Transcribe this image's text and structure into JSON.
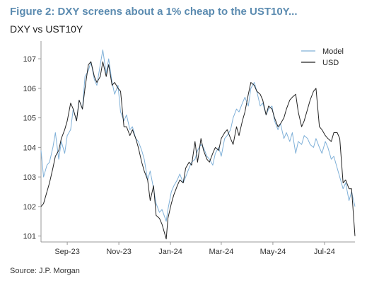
{
  "figure": {
    "title": "Figure 2: DXY screens about a 1% cheap to the UST10Y...",
    "subtitle": "DXY vs UST10Y",
    "source": "Source: J.P. Morgan"
  },
  "chart_data": {
    "type": "line",
    "title": "DXY vs UST10Y",
    "xlabel": "",
    "ylabel": "",
    "x_ticks": [
      "Sep-23",
      "Nov-23",
      "Jan-24",
      "Mar-24",
      "May-24",
      "Jul-24"
    ],
    "y_ticks": [
      101,
      102,
      103,
      104,
      105,
      106,
      107
    ],
    "ylim": [
      100.8,
      107.6
    ],
    "xlim": [
      "2023-08-01",
      "2024-08-06"
    ],
    "grid": false,
    "legend_position": "top-right",
    "colors": {
      "Model": "#7fb0d8",
      "USD": "#222222"
    },
    "x": [
      "2023-08-01",
      "2023-08-04",
      "2023-08-08",
      "2023-08-11",
      "2023-08-15",
      "2023-08-18",
      "2023-08-22",
      "2023-08-25",
      "2023-08-29",
      "2023-09-01",
      "2023-09-05",
      "2023-09-08",
      "2023-09-12",
      "2023-09-15",
      "2023-09-19",
      "2023-09-22",
      "2023-09-26",
      "2023-09-29",
      "2023-10-03",
      "2023-10-06",
      "2023-10-10",
      "2023-10-13",
      "2023-10-17",
      "2023-10-20",
      "2023-10-24",
      "2023-10-27",
      "2023-10-31",
      "2023-11-03",
      "2023-11-07",
      "2023-11-10",
      "2023-11-14",
      "2023-11-17",
      "2023-11-21",
      "2023-11-24",
      "2023-11-28",
      "2023-12-01",
      "2023-12-05",
      "2023-12-08",
      "2023-12-12",
      "2023-12-15",
      "2023-12-19",
      "2023-12-22",
      "2023-12-27",
      "2023-12-29",
      "2024-01-02",
      "2024-01-05",
      "2024-01-09",
      "2024-01-12",
      "2024-01-16",
      "2024-01-19",
      "2024-01-23",
      "2024-01-26",
      "2024-01-30",
      "2024-02-02",
      "2024-02-06",
      "2024-02-09",
      "2024-02-13",
      "2024-02-16",
      "2024-02-20",
      "2024-02-23",
      "2024-02-27",
      "2024-03-01",
      "2024-03-05",
      "2024-03-08",
      "2024-03-12",
      "2024-03-15",
      "2024-03-19",
      "2024-03-22",
      "2024-03-26",
      "2024-03-29",
      "2024-04-02",
      "2024-04-05",
      "2024-04-09",
      "2024-04-12",
      "2024-04-16",
      "2024-04-19",
      "2024-04-23",
      "2024-04-26",
      "2024-04-30",
      "2024-05-03",
      "2024-05-07",
      "2024-05-10",
      "2024-05-14",
      "2024-05-17",
      "2024-05-21",
      "2024-05-24",
      "2024-05-28",
      "2024-05-31",
      "2024-06-04",
      "2024-06-07",
      "2024-06-11",
      "2024-06-14",
      "2024-06-18",
      "2024-06-21",
      "2024-06-25",
      "2024-06-28",
      "2024-07-02",
      "2024-07-05",
      "2024-07-09",
      "2024-07-12",
      "2024-07-16",
      "2024-07-19",
      "2024-07-23",
      "2024-07-26",
      "2024-07-30",
      "2024-08-02",
      "2024-08-06"
    ],
    "series": [
      {
        "name": "Model",
        "values": [
          103.9,
          103.0,
          103.4,
          103.5,
          104.0,
          104.5,
          103.6,
          104.2,
          103.8,
          104.4,
          104.6,
          105.3,
          104.9,
          105.6,
          105.3,
          106.4,
          106.6,
          106.9,
          106.3,
          106.1,
          106.8,
          107.3,
          106.5,
          107.0,
          106.2,
          105.8,
          106.1,
          105.2,
          104.9,
          105.1,
          104.6,
          104.7,
          104.3,
          104.2,
          103.9,
          103.6,
          102.9,
          103.2,
          102.6,
          102.1,
          101.8,
          101.9,
          101.5,
          101.9,
          102.5,
          102.7,
          102.9,
          103.1,
          102.8,
          103.0,
          103.3,
          103.5,
          103.6,
          103.9,
          104.1,
          104.0,
          103.7,
          103.6,
          103.4,
          103.8,
          104.0,
          103.7,
          104.3,
          104.4,
          104.6,
          105.0,
          105.3,
          105.2,
          105.5,
          105.7,
          105.4,
          106.0,
          106.2,
          105.9,
          105.4,
          105.5,
          105.1,
          105.3,
          105.4,
          104.9,
          104.6,
          104.8,
          104.3,
          104.5,
          104.2,
          104.5,
          103.8,
          104.2,
          104.1,
          104.4,
          104.3,
          104.1,
          104.0,
          104.3,
          104.0,
          103.8,
          104.2,
          104.0,
          103.6,
          103.7,
          103.3,
          103.0,
          102.6,
          102.8,
          102.2,
          102.5,
          102.0
        ]
      },
      {
        "name": "USD",
        "values": [
          102.0,
          102.1,
          102.5,
          102.8,
          103.3,
          103.7,
          103.9,
          104.3,
          104.6,
          104.9,
          105.5,
          105.3,
          104.9,
          105.6,
          105.3,
          106.0,
          106.8,
          106.9,
          106.4,
          106.2,
          106.4,
          106.9,
          106.4,
          106.8,
          106.1,
          106.2,
          106.0,
          105.9,
          104.7,
          104.7,
          104.4,
          104.6,
          104.3,
          104.0,
          103.5,
          103.2,
          102.9,
          102.2,
          102.7,
          101.7,
          101.6,
          101.4,
          100.9,
          101.6,
          102.1,
          102.4,
          102.7,
          102.9,
          102.8,
          103.3,
          103.5,
          103.4,
          104.2,
          103.5,
          104.3,
          103.9,
          103.6,
          103.5,
          103.8,
          104.0,
          103.9,
          104.3,
          104.5,
          104.6,
          104.3,
          104.1,
          104.7,
          104.4,
          104.9,
          105.2,
          105.8,
          106.2,
          106.1,
          105.9,
          105.8,
          105.6,
          105.1,
          105.4,
          105.3,
          105.0,
          104.7,
          104.8,
          105.0,
          105.3,
          105.6,
          105.7,
          105.8,
          105.2,
          104.7,
          104.9,
          105.3,
          105.6,
          105.9,
          106.0,
          104.7,
          104.6,
          104.4,
          104.3,
          104.2,
          104.5,
          104.5,
          104.3,
          102.8,
          102.9,
          102.6,
          102.6,
          101.0
        ]
      }
    ]
  }
}
